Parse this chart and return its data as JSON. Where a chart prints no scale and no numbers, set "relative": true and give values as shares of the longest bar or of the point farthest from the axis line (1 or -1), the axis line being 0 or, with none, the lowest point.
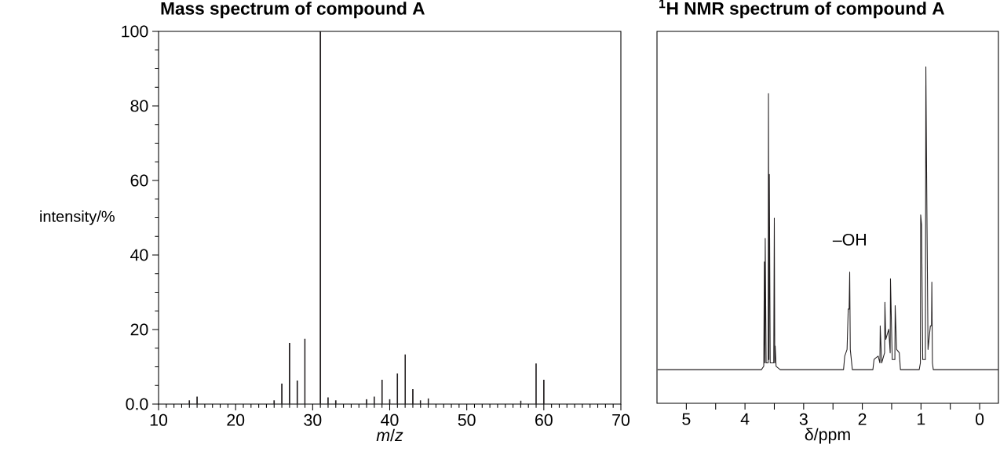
{
  "chart_data": [
    {
      "type": "bar",
      "title": "Mass spectrum of compound A",
      "xlabel": "*m*/*z*",
      "ylabel": "intensity/%",
      "x": [
        14,
        15,
        25,
        26,
        27,
        28,
        29,
        31,
        32,
        33,
        37,
        38,
        39,
        40,
        41,
        42,
        43,
        44,
        45,
        57,
        59,
        60
      ],
      "values": [
        1,
        2,
        1,
        5.5,
        16.4,
        6.3,
        17.5,
        100,
        1.8,
        1,
        1.3,
        2,
        6.5,
        1.3,
        8.2,
        13.3,
        4,
        1,
        1.5,
        0.9,
        10.9,
        6.5
      ],
      "color": "#231f20",
      "xlim": [
        10,
        70
      ],
      "ylim": [
        0,
        100
      ],
      "xticks": [
        10,
        20,
        30,
        40,
        50,
        60,
        70
      ],
      "yticks": [
        {
          "value": 0,
          "label": "0.0"
        },
        20,
        40,
        60,
        80,
        100
      ]
    },
    {
      "type": "line",
      "title": "$^{1}$H NMR spectrum of compound A",
      "xlabel": "δ/ppm",
      "annotations": [
        "–OH"
      ],
      "relative": true,
      "x": [
        5.49,
        4.5,
        3.72,
        3.68,
        3.67,
        3.662,
        3.655,
        3.64,
        3.605,
        3.6,
        3.592,
        3.585,
        3.57,
        3.51,
        3.5,
        3.492,
        3.485,
        3.47,
        3.4,
        2.32,
        2.3,
        2.26,
        2.24,
        2.225,
        2.215,
        2.205,
        2.17,
        1.82,
        1.8,
        1.77,
        1.73,
        1.7,
        1.695,
        1.67,
        1.62,
        1.615,
        1.6,
        1.55,
        1.525,
        1.52,
        1.49,
        1.445,
        1.44,
        1.415,
        1.37,
        1.35,
        1.03,
        1.01,
        1.005,
        0.99,
        0.97,
        0.925,
        0.917,
        0.9,
        0.88,
        0.84,
        0.82,
        0.815,
        0.805,
        0.79,
        0,
        -0.32
      ],
      "values": [
        0.1,
        0.1,
        0.1,
        0.11,
        0.42,
        0.12,
        0.49,
        0.12,
        0.12,
        0.92,
        0.13,
        0.68,
        0.12,
        0.12,
        0.55,
        0.12,
        0.17,
        0.11,
        0.1,
        0.1,
        0.14,
        0.16,
        0.28,
        0.28,
        0.39,
        0.16,
        0.1,
        0.1,
        0.13,
        0.135,
        0.14,
        0.12,
        0.23,
        0.12,
        0.15,
        0.3,
        0.19,
        0.22,
        0.15,
        0.37,
        0.13,
        0.13,
        0.29,
        0.16,
        0.15,
        0.1,
        0.1,
        0.12,
        0.56,
        0.53,
        0.13,
        0.13,
        1.0,
        0.59,
        0.16,
        0.23,
        0.23,
        0.36,
        0.12,
        0.1,
        0.1,
        0.1
      ],
      "color": "#231f20",
      "xlim": [
        5.5,
        -0.32
      ],
      "xticks": [
        5,
        {
          "value": 4.5,
          "label": null
        },
        4,
        {
          "value": 3.5,
          "label": null
        },
        3,
        {
          "value": 2.5,
          "label": null
        },
        2,
        {
          "value": 1.5,
          "label": null
        },
        1,
        {
          "value": 0.5,
          "label": null
        },
        0
      ]
    }
  ]
}
